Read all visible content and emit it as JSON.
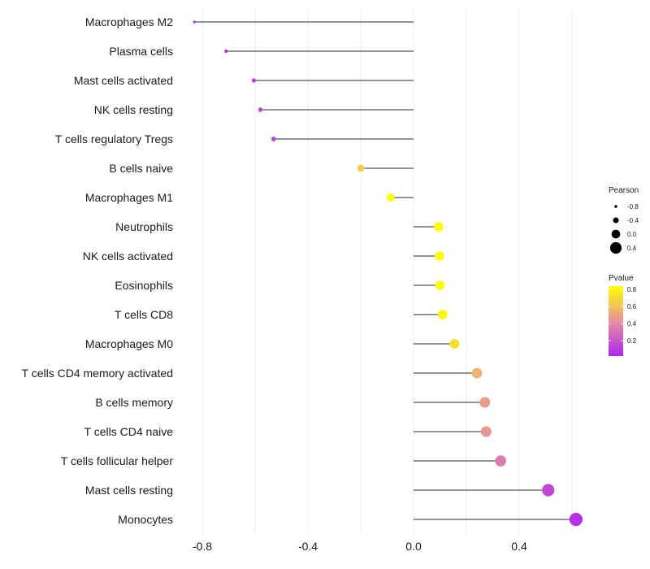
{
  "chart_data": {
    "type": "lollipop",
    "title": "",
    "xlabel": "",
    "ylabel": "",
    "xlim": [
      -0.9,
      0.67
    ],
    "x_ticks": [
      -0.8,
      -0.4,
      0.0,
      0.4
    ],
    "x_tick_labels": [
      "-0.8",
      "-0.4",
      "0.0",
      "0.4"
    ],
    "grid": true,
    "categories": [
      "Macrophages M2",
      "Plasma cells",
      "Mast cells activated",
      "NK cells resting",
      "T cells regulatory  Tregs",
      "B cells naive",
      "Macrophages M1",
      "Neutrophils",
      "NK cells activated",
      "Eosinophils",
      "T cells CD8",
      "Macrophages M0",
      "T cells CD4 memory activated",
      "B cells memory",
      "T cells CD4 naive",
      "T cells follicular helper",
      "Mast cells resting",
      "Monocytes"
    ],
    "pearson": [
      -0.83,
      -0.71,
      -0.605,
      -0.58,
      -0.53,
      -0.2,
      -0.087,
      0.095,
      0.098,
      0.1,
      0.11,
      0.155,
      0.24,
      0.27,
      0.275,
      0.33,
      0.51,
      0.615
    ],
    "pvalue": [
      0.03,
      0.04,
      0.1,
      0.12,
      0.15,
      0.65,
      0.82,
      0.82,
      0.82,
      0.82,
      0.8,
      0.72,
      0.55,
      0.47,
      0.45,
      0.35,
      0.15,
      0.06
    ],
    "size_legend": {
      "title": "Pearson",
      "values": [
        -0.8,
        -0.4,
        0.0,
        0.4
      ],
      "labels": [
        "-0.8",
        "-0.4",
        "0.0",
        "0.4"
      ]
    },
    "color_legend": {
      "title": "Pvalue",
      "range": [
        0.02,
        0.84
      ],
      "ticks": [
        0.8,
        0.6,
        0.4,
        0.2
      ],
      "tick_labels": [
        "0.8",
        "0.6",
        "0.4",
        "0.2"
      ],
      "low_color": "#b026ee",
      "high_color": "#ffff00"
    },
    "colors": {
      "segment": "#2a2a2a",
      "grid": "#ececec",
      "low": "#b026ee",
      "mid": "#e7919e",
      "high": "#ffff00"
    }
  }
}
